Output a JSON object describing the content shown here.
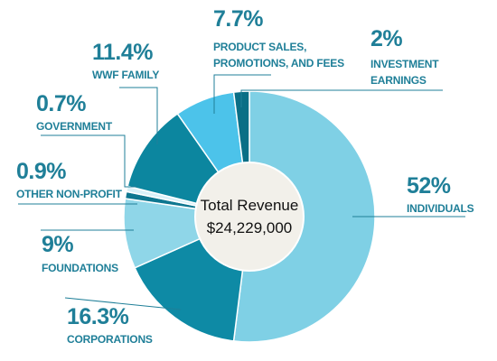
{
  "chart_data": {
    "type": "pie",
    "title": "",
    "center": {
      "title": "Total Revenue",
      "value": "$24,229,000"
    },
    "slices": [
      {
        "name": "INDIVIDUALS",
        "percent_label": "52%",
        "value": 52,
        "color": "#7fd0e5"
      },
      {
        "name": "CORPORATIONS",
        "percent_label": "16.3%",
        "value": 16.3,
        "color": "#0e8aa5"
      },
      {
        "name": "FOUNDATIONS",
        "percent_label": "9%",
        "value": 9,
        "color": "#8fd6e8"
      },
      {
        "name": "OTHER NON-PROFIT",
        "percent_label": "0.9%",
        "value": 0.9,
        "color": "#0e7790"
      },
      {
        "name": "GOVERNMENT",
        "percent_label": "0.7%",
        "value": 0.7,
        "color": "#d9f1f8"
      },
      {
        "name": "WWF FAMILY",
        "percent_label": "11.4%",
        "value": 11.4,
        "color": "#0c869f"
      },
      {
        "name": "PRODUCT SALES, PROMOTIONS, AND FEES",
        "percent_label": "7.7%",
        "value": 7.7,
        "color": "#4cc3ea"
      },
      {
        "name": "INVESTMENT EARNINGS",
        "percent_label": "2%",
        "value": 2,
        "color": "#0a6f86"
      }
    ]
  }
}
